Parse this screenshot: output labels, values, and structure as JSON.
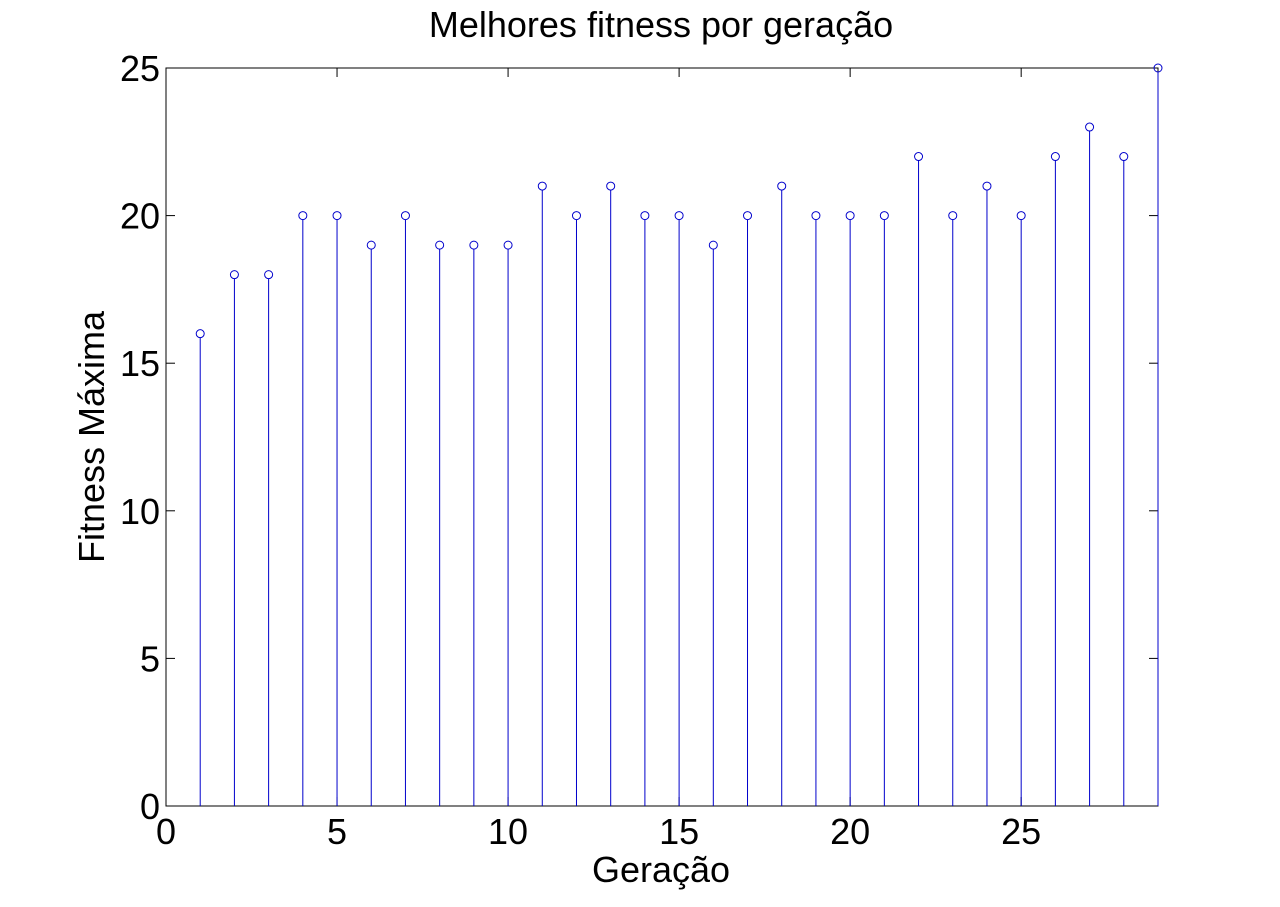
{
  "chart_data": {
    "type": "stem",
    "title": "Melhores fitness por geração",
    "xlabel": "Geração",
    "ylabel": "Fitness Máxima",
    "xlim": [
      0,
      29
    ],
    "ylim": [
      0,
      25
    ],
    "xticks": [
      0,
      5,
      10,
      15,
      20,
      25
    ],
    "yticks": [
      0,
      5,
      10,
      15,
      20,
      25
    ],
    "grid": false,
    "legend": "none",
    "series": [
      {
        "color": "#0000cc",
        "marker": "circle",
        "x": [
          1,
          2,
          3,
          4,
          5,
          6,
          7,
          8,
          9,
          10,
          11,
          12,
          13,
          14,
          15,
          16,
          17,
          18,
          19,
          20,
          21,
          22,
          23,
          24,
          25,
          26,
          27,
          28,
          29
        ],
        "y": [
          16,
          18,
          18,
          20,
          20,
          19,
          20,
          19,
          19,
          19,
          21,
          20,
          21,
          20,
          20,
          19,
          20,
          21,
          20,
          20,
          20,
          22,
          20,
          21,
          20,
          22,
          23,
          22,
          25
        ]
      }
    ]
  }
}
